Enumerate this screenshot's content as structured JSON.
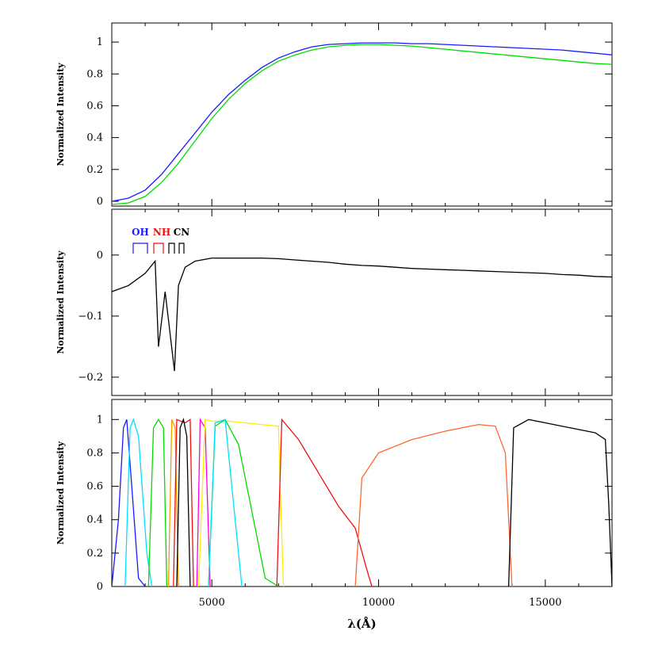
{
  "chart_data": [
    {
      "type": "line",
      "ylabel": "Normalized Intensity",
      "xlim": [
        2000,
        17000
      ],
      "ylim": [
        -0.03,
        1.12
      ],
      "yticks": [
        "0",
        "0.2",
        "0.4",
        "0.6",
        "0.8",
        "1"
      ],
      "series": [
        {
          "color": "#00dd00",
          "x": [
            2000,
            2500,
            3000,
            3500,
            4000,
            4500,
            5000,
            5500,
            6000,
            6500,
            7000,
            7500,
            8000,
            8500,
            9000,
            9500,
            10000,
            10500,
            11000,
            11500,
            12000,
            12500,
            13000,
            13500,
            14000,
            14500,
            15000,
            15500,
            16000,
            16500,
            17000
          ],
          "y": [
            -0.02,
            -0.01,
            0.03,
            0.12,
            0.24,
            0.38,
            0.52,
            0.64,
            0.74,
            0.82,
            0.88,
            0.92,
            0.95,
            0.97,
            0.98,
            0.985,
            0.985,
            0.98,
            0.975,
            0.965,
            0.955,
            0.945,
            0.935,
            0.925,
            0.915,
            0.905,
            0.895,
            0.885,
            0.875,
            0.865,
            0.86
          ]
        },
        {
          "color": "#1a1aff",
          "x": [
            2000,
            2500,
            3000,
            3500,
            4000,
            4500,
            5000,
            5500,
            6000,
            6500,
            7000,
            7500,
            8000,
            8500,
            9000,
            9500,
            10000,
            10500,
            11000,
            11500,
            12000,
            12500,
            13000,
            13500,
            14000,
            14500,
            15000,
            15500,
            16000,
            16500,
            17000
          ],
          "y": [
            0.0,
            0.02,
            0.07,
            0.17,
            0.3,
            0.43,
            0.56,
            0.67,
            0.76,
            0.84,
            0.9,
            0.94,
            0.97,
            0.985,
            0.99,
            0.995,
            0.995,
            0.995,
            0.99,
            0.99,
            0.985,
            0.98,
            0.975,
            0.97,
            0.965,
            0.96,
            0.955,
            0.95,
            0.94,
            0.93,
            0.92
          ]
        }
      ]
    },
    {
      "type": "line",
      "ylabel": "Normalized Intensity",
      "xlim": [
        2000,
        17000
      ],
      "ylim": [
        -0.23,
        0.075
      ],
      "yticks": [
        "−0.2",
        "−0.1",
        "0"
      ],
      "annotations": [
        "OH",
        "NH",
        "CN"
      ],
      "annotation_colors": [
        "#1a1aff",
        "#ee1111",
        "#000000"
      ],
      "series": [
        {
          "color": "#000000",
          "x": [
            2000,
            2500,
            3000,
            3300,
            3400,
            3600,
            3880,
            4000,
            4200,
            4500,
            5000,
            5500,
            6000,
            6500,
            7000,
            7500,
            8000,
            8500,
            9000,
            9500,
            10000,
            10500,
            11000,
            11500,
            12000,
            12500,
            13000,
            13500,
            14000,
            14500,
            15000,
            15500,
            16000,
            16500,
            17000
          ],
          "y": [
            -0.06,
            -0.05,
            -0.03,
            -0.01,
            -0.15,
            -0.06,
            -0.19,
            -0.05,
            -0.02,
            -0.01,
            -0.005,
            -0.005,
            -0.005,
            -0.005,
            -0.006,
            -0.008,
            -0.01,
            -0.012,
            -0.015,
            -0.017,
            -0.018,
            -0.02,
            -0.022,
            -0.023,
            -0.024,
            -0.025,
            -0.026,
            -0.027,
            -0.028,
            -0.029,
            -0.03,
            -0.032,
            -0.033,
            -0.035,
            -0.036
          ]
        }
      ]
    },
    {
      "type": "line",
      "ylabel": "Normalized Intensity",
      "xlabel": "λ(Å)",
      "xlim": [
        2000,
        17000
      ],
      "ylim": [
        0,
        1.12
      ],
      "yticks": [
        "0",
        "0.2",
        "0.4",
        "0.6",
        "0.8",
        "1"
      ],
      "xticks": [
        "5000",
        "10000",
        "15000"
      ],
      "series": [
        {
          "color": "#1a1aff",
          "x": [
            2000,
            2200,
            2350,
            2450,
            2600,
            2800,
            3000
          ],
          "y": [
            0,
            0.4,
            0.95,
            1.0,
            0.6,
            0.05,
            0
          ]
        },
        {
          "color": "#00e0ff",
          "x": [
            2400,
            2550,
            2650,
            2800,
            3050,
            3200
          ],
          "y": [
            0,
            0.95,
            1.0,
            0.9,
            0.2,
            0
          ]
        },
        {
          "color": "#00dd00",
          "x": [
            3100,
            3250,
            3400,
            3550,
            3650
          ],
          "y": [
            0,
            0.95,
            1.0,
            0.95,
            0
          ]
        },
        {
          "color": "#ff9900",
          "x": [
            3700,
            3800,
            3900,
            4000
          ],
          "y": [
            0,
            1.0,
            0.95,
            0
          ]
        },
        {
          "color": "#ee1111",
          "x": [
            3850,
            3950,
            4200,
            4350,
            4450
          ],
          "y": [
            0,
            1.0,
            0.98,
            1.0,
            0
          ]
        },
        {
          "color": "#000000",
          "x": [
            3950,
            4050,
            4150,
            4250,
            4350
          ],
          "y": [
            0,
            0.95,
            1.0,
            0.9,
            0
          ]
        },
        {
          "color": "#ff00dd",
          "x": [
            4550,
            4650,
            4800,
            4950
          ],
          "y": [
            0,
            1.0,
            0.95,
            0
          ]
        },
        {
          "color": "#ffee00",
          "x": [
            4600,
            4800,
            5000,
            5500,
            6000,
            6500,
            7000,
            7050,
            7150
          ],
          "y": [
            0,
            1.0,
            0.99,
            0.99,
            0.98,
            0.97,
            0.96,
            0.6,
            0
          ]
        },
        {
          "color": "#00dd00",
          "x": [
            4900,
            5100,
            5400,
            5800,
            6200,
            6600,
            7000
          ],
          "y": [
            0,
            0.96,
            1.0,
            0.85,
            0.45,
            0.05,
            0
          ]
        },
        {
          "color": "#00e0ff",
          "x": [
            4900,
            5100,
            5400,
            5700,
            5900
          ],
          "y": [
            0,
            0.98,
            1.0,
            0.4,
            0
          ]
        },
        {
          "color": "#ee1111",
          "x": [
            6950,
            7100,
            7600,
            8200,
            8800,
            9300,
            9650,
            9800
          ],
          "y": [
            0,
            1.0,
            0.88,
            0.68,
            0.48,
            0.35,
            0.1,
            0
          ]
        },
        {
          "color": "#ff6633",
          "x": [
            9300,
            9500,
            10000,
            11000,
            12000,
            13000,
            13500,
            13800,
            14000
          ],
          "y": [
            0,
            0.65,
            0.8,
            0.88,
            0.93,
            0.97,
            0.96,
            0.8,
            0
          ]
        },
        {
          "color": "#000000",
          "x": [
            13900,
            14050,
            14500,
            15000,
            15500,
            16000,
            16500,
            16800,
            16900,
            17000
          ],
          "y": [
            0,
            0.95,
            1.0,
            0.98,
            0.96,
            0.94,
            0.92,
            0.88,
            0.5,
            0
          ]
        }
      ]
    }
  ]
}
